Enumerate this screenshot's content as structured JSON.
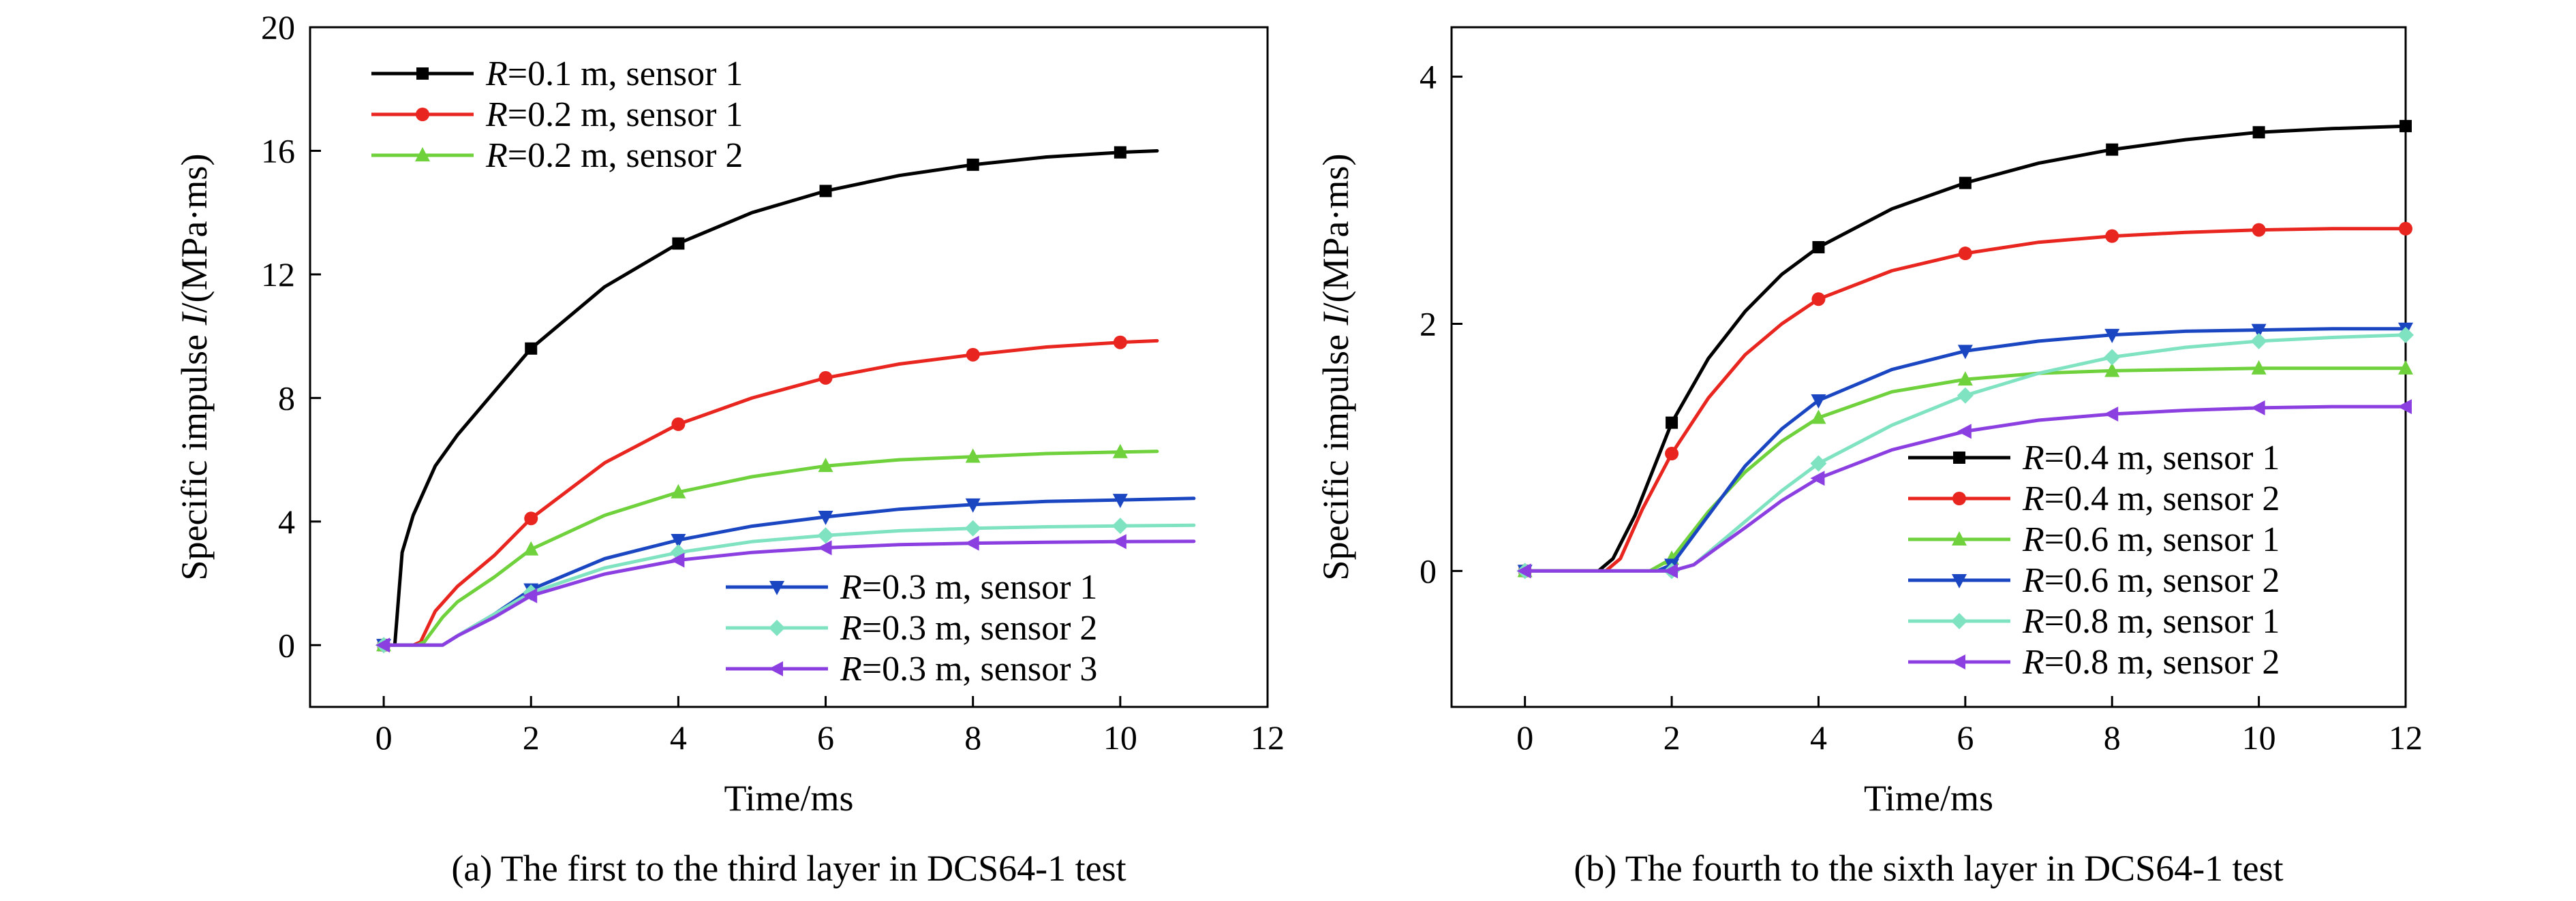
{
  "chart_data": [
    {
      "type": "line",
      "caption": "(a) The first to the third layer in DCS64-1 test",
      "xlabel": "Time/ms",
      "ylabel_prefix": "Specific impulse ",
      "ylabel_var": "I",
      "ylabel_suffix": "/(MPa·ms)",
      "xlim": [
        -1,
        12
      ],
      "ylim": [
        -2,
        20
      ],
      "xticks": [
        "0",
        "2",
        "4",
        "6",
        "8",
        "10",
        "12"
      ],
      "yticks": [
        "0",
        "4",
        "8",
        "12",
        "16",
        "20"
      ],
      "grid": false,
      "legend_groups": [
        "top-left",
        "bottom-right"
      ],
      "series": [
        {
          "name_var": "R",
          "name": "=0.1 m, sensor 1",
          "color": "#000000",
          "marker": "square",
          "legend_group": 0,
          "x": [
            0,
            0.15,
            0.25,
            0.4,
            0.7,
            1,
            1.5,
            2,
            3,
            4,
            5,
            6,
            7,
            8,
            9,
            10,
            10.5
          ],
          "y": [
            0,
            0,
            3,
            4.2,
            5.8,
            6.8,
            8.2,
            9.6,
            11.6,
            13.0,
            14.0,
            14.7,
            15.2,
            15.55,
            15.8,
            15.95,
            16.0
          ],
          "markers_x": [
            0,
            2,
            4,
            6,
            8,
            10
          ]
        },
        {
          "name_var": "R",
          "name": "=0.2 m, sensor 1",
          "color": "#e8251e",
          "marker": "circle",
          "legend_group": 0,
          "x": [
            0,
            0.4,
            0.5,
            0.7,
            1,
            1.5,
            2,
            3,
            4,
            5,
            6,
            7,
            8,
            9,
            10,
            10.5
          ],
          "y": [
            0,
            0,
            0.1,
            1.1,
            1.9,
            2.9,
            4.1,
            5.9,
            7.15,
            8.0,
            8.65,
            9.1,
            9.4,
            9.65,
            9.8,
            9.85
          ],
          "markers_x": [
            0,
            2,
            4,
            6,
            8,
            10
          ]
        },
        {
          "name_var": "R",
          "name": "=0.2 m, sensor 2",
          "color": "#6fd13c",
          "marker": "triangle-up",
          "legend_group": 0,
          "x": [
            0,
            0.45,
            0.55,
            0.8,
            1,
            1.5,
            2,
            3,
            4,
            5,
            6,
            7,
            8,
            9,
            10,
            10.5
          ],
          "y": [
            0,
            0,
            0.1,
            0.9,
            1.4,
            2.2,
            3.1,
            4.2,
            4.95,
            5.45,
            5.8,
            6.0,
            6.1,
            6.2,
            6.25,
            6.27
          ],
          "markers_x": [
            0,
            2,
            4,
            6,
            8,
            10
          ]
        },
        {
          "name_var": "R",
          "name": "=0.3 m, sensor 1",
          "color": "#1b46c2",
          "marker": "triangle-down",
          "legend_group": 1,
          "x": [
            0,
            0.8,
            1,
            1.5,
            2,
            3,
            4,
            5,
            6,
            7,
            8,
            9,
            10,
            11
          ],
          "y": [
            0,
            0,
            0.3,
            1.0,
            1.8,
            2.8,
            3.4,
            3.85,
            4.15,
            4.4,
            4.55,
            4.65,
            4.7,
            4.75
          ],
          "markers_x": [
            0,
            2,
            4,
            6,
            8,
            10
          ]
        },
        {
          "name_var": "R",
          "name": "=0.3 m, sensor 2",
          "color": "#7fe3c2",
          "marker": "diamond",
          "legend_group": 1,
          "x": [
            0,
            0.8,
            1,
            1.5,
            2,
            3,
            4,
            5,
            6,
            7,
            8,
            9,
            10,
            11
          ],
          "y": [
            0,
            0,
            0.3,
            1.0,
            1.7,
            2.5,
            3.0,
            3.35,
            3.55,
            3.7,
            3.78,
            3.83,
            3.86,
            3.88
          ],
          "markers_x": [
            0,
            2,
            4,
            6,
            8,
            10
          ]
        },
        {
          "name_var": "R",
          "name": "=0.3 m, sensor 3",
          "color": "#8c3fe0",
          "marker": "triangle-left",
          "legend_group": 1,
          "x": [
            0,
            0.8,
            1,
            1.5,
            2,
            3,
            4,
            5,
            6,
            7,
            8,
            9,
            10,
            11
          ],
          "y": [
            0,
            0,
            0.3,
            0.9,
            1.6,
            2.3,
            2.75,
            3.0,
            3.15,
            3.25,
            3.3,
            3.33,
            3.35,
            3.36
          ],
          "markers_x": [
            0,
            2,
            4,
            6,
            8,
            10
          ]
        }
      ]
    },
    {
      "type": "line",
      "caption": "(b) The fourth to the sixth layer in DCS64-1 test",
      "xlabel": "Time/ms",
      "ylabel_prefix": "Specific impulse ",
      "ylabel_var": "I",
      "ylabel_suffix": "/(MPa·ms)",
      "xlim": [
        -1,
        12
      ],
      "ylim": [
        -1.1,
        4.4
      ],
      "xticks": [
        "0",
        "2",
        "4",
        "6",
        "8",
        "10",
        "12"
      ],
      "yticks": [
        "0",
        "2",
        "4"
      ],
      "grid": false,
      "legend_groups": [
        "bottom-right"
      ],
      "series": [
        {
          "name_var": "R",
          "name": "=0.4 m, sensor 1",
          "color": "#000000",
          "marker": "square",
          "legend_group": 0,
          "x": [
            0,
            1,
            1.2,
            1.5,
            2,
            2.5,
            3,
            3.5,
            4,
            5,
            6,
            7,
            8,
            9,
            10,
            11,
            12
          ],
          "y": [
            0,
            0,
            0.1,
            0.45,
            1.2,
            1.72,
            2.1,
            2.4,
            2.62,
            2.93,
            3.14,
            3.3,
            3.41,
            3.49,
            3.55,
            3.58,
            3.6
          ],
          "markers_x": [
            0,
            2,
            4,
            6,
            8,
            10,
            12
          ]
        },
        {
          "name_var": "R",
          "name": "=0.4 m, sensor 2",
          "color": "#e8251e",
          "marker": "circle",
          "legend_group": 0,
          "x": [
            0,
            1.1,
            1.3,
            1.6,
            2,
            2.5,
            3,
            3.5,
            4,
            5,
            6,
            7,
            8,
            9,
            10,
            11,
            12
          ],
          "y": [
            0,
            0,
            0.1,
            0.5,
            0.95,
            1.4,
            1.75,
            2.0,
            2.2,
            2.43,
            2.57,
            2.66,
            2.71,
            2.74,
            2.76,
            2.77,
            2.77
          ],
          "markers_x": [
            0,
            2,
            4,
            6,
            8,
            10,
            12
          ]
        },
        {
          "name_var": "R",
          "name": "=0.6 m, sensor 1",
          "color": "#6fd13c",
          "marker": "triangle-up",
          "legend_group": 0,
          "x": [
            0,
            1.7,
            2,
            2.5,
            3,
            3.5,
            4,
            5,
            6,
            7,
            8,
            9,
            10,
            11,
            12
          ],
          "y": [
            0,
            0,
            0.1,
            0.48,
            0.8,
            1.05,
            1.24,
            1.45,
            1.55,
            1.6,
            1.62,
            1.63,
            1.64,
            1.64,
            1.64
          ],
          "markers_x": [
            0,
            2,
            4,
            6,
            8,
            10,
            12
          ]
        },
        {
          "name_var": "R",
          "name": "=0.6 m, sensor 2",
          "color": "#1b46c2",
          "marker": "triangle-down",
          "legend_group": 0,
          "x": [
            0,
            1.8,
            2,
            2.5,
            3,
            3.5,
            4,
            5,
            6,
            7,
            8,
            9,
            10,
            11,
            12
          ],
          "y": [
            0,
            0,
            0.05,
            0.45,
            0.85,
            1.15,
            1.38,
            1.63,
            1.78,
            1.86,
            1.91,
            1.94,
            1.95,
            1.96,
            1.96
          ],
          "markers_x": [
            0,
            2,
            4,
            6,
            8,
            10,
            12
          ]
        },
        {
          "name_var": "R",
          "name": "=0.8 m, sensor 1",
          "color": "#7fe3c2",
          "marker": "diamond",
          "legend_group": 0,
          "x": [
            0,
            2,
            2.3,
            2.6,
            3,
            3.5,
            4,
            5,
            6,
            7,
            8,
            9,
            10,
            11,
            12
          ],
          "y": [
            0,
            0,
            0.05,
            0.2,
            0.4,
            0.65,
            0.87,
            1.18,
            1.42,
            1.6,
            1.73,
            1.81,
            1.86,
            1.89,
            1.91
          ],
          "markers_x": [
            0,
            2,
            4,
            6,
            8,
            10,
            12
          ]
        },
        {
          "name_var": "R",
          "name": "=0.8 m, sensor 2",
          "color": "#8c3fe0",
          "marker": "triangle-left",
          "legend_group": 0,
          "x": [
            0,
            2,
            2.3,
            2.6,
            3,
            3.5,
            4,
            5,
            6,
            7,
            8,
            9,
            10,
            11,
            12
          ],
          "y": [
            0,
            0,
            0.05,
            0.18,
            0.35,
            0.57,
            0.75,
            0.98,
            1.13,
            1.22,
            1.27,
            1.3,
            1.32,
            1.33,
            1.33
          ],
          "markers_x": [
            0,
            2,
            4,
            6,
            8,
            10,
            12
          ]
        }
      ]
    }
  ]
}
